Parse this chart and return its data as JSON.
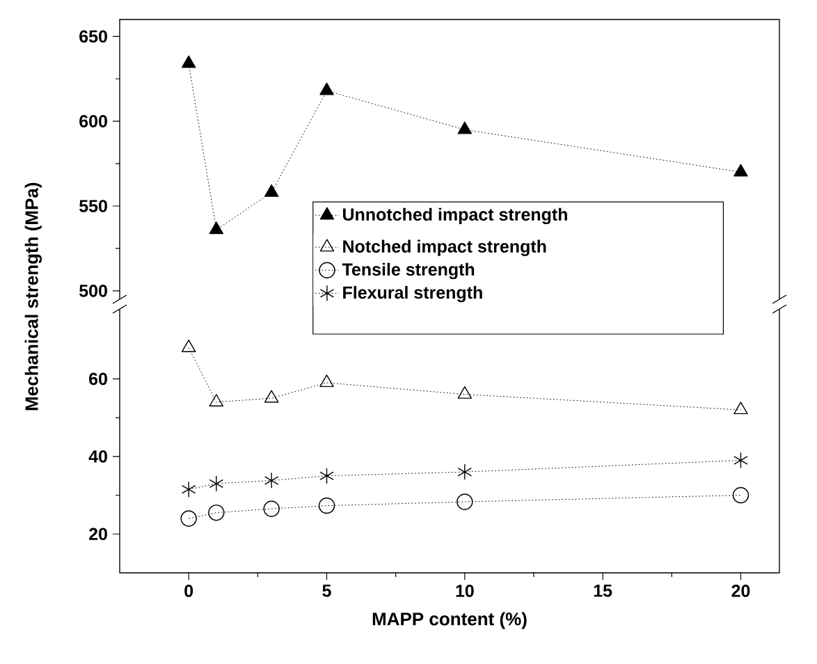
{
  "chart_data": [
    {
      "type": "line",
      "ylim": [
        495,
        660
      ],
      "yticks": [
        500,
        550,
        600,
        650
      ],
      "xlim": [
        -2.5,
        21.4
      ],
      "tick_labels": "y",
      "legend": "bottom",
      "line_style": "dotted",
      "x": [
        0,
        1,
        3,
        5,
        10,
        20
      ],
      "series": [
        {
          "name": "Unnotched impact strength",
          "color": "#000000",
          "marker": "triangle",
          "values": [
            634,
            536,
            558,
            618,
            595,
            570
          ]
        }
      ]
    },
    {
      "type": "line",
      "ylim": [
        10,
        78
      ],
      "yticks": [
        20,
        40,
        60
      ],
      "xlim": [
        -2.5,
        21.4
      ],
      "xticks": [
        0,
        5,
        10,
        15,
        20
      ],
      "xlabel": "MAPP content (%)",
      "ylabel": "Mechanical strength (MPa)",
      "legend": "top",
      "line_style": "dotted",
      "x": [
        0,
        1,
        3,
        5,
        10,
        20
      ],
      "series": [
        {
          "name": "Notched impact strength",
          "color": "#000000",
          "marker": "triangle",
          "values": [
            68,
            54,
            55,
            59,
            56,
            52
          ]
        },
        {
          "name": "Tensile strength",
          "color": "#000000",
          "marker": "circle",
          "values": [
            24,
            25.5,
            26.5,
            27.3,
            28.3,
            30
          ]
        },
        {
          "name": "Flexural strength",
          "color": "#000000",
          "marker": "cross",
          "values": [
            31.5,
            33,
            33.8,
            35,
            36,
            39
          ]
        }
      ]
    }
  ]
}
